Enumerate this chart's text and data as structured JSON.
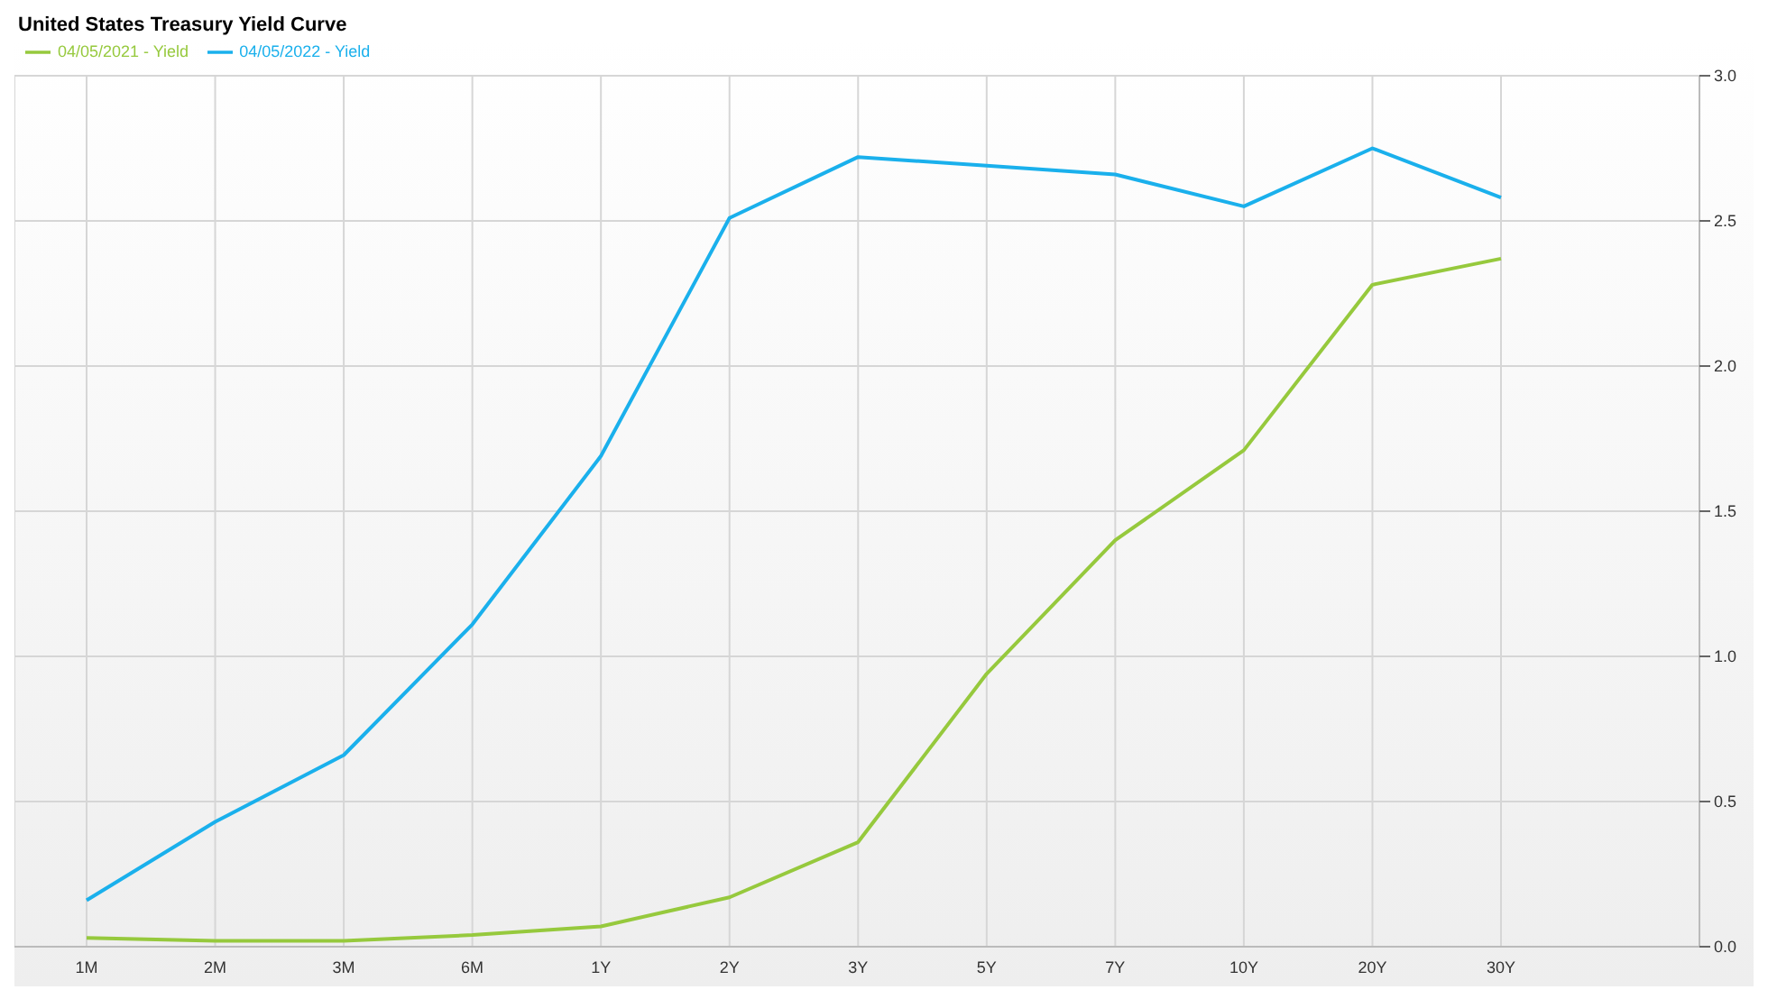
{
  "chart_data": {
    "type": "line",
    "title": "United States Treasury Yield Curve",
    "categories": [
      "1M",
      "2M",
      "3M",
      "6M",
      "1Y",
      "2Y",
      "3Y",
      "5Y",
      "7Y",
      "10Y",
      "20Y",
      "30Y"
    ],
    "series": [
      {
        "name": "04/05/2022 - Yield",
        "color": "#1ab0ec",
        "values": [
          0.16,
          0.43,
          0.66,
          1.11,
          1.69,
          2.51,
          2.72,
          2.69,
          2.66,
          2.55,
          2.75,
          2.58
        ]
      },
      {
        "name": "04/05/2021 - Yield",
        "color": "#96c93d",
        "values": [
          0.03,
          0.02,
          0.02,
          0.04,
          0.07,
          0.17,
          0.36,
          0.94,
          1.4,
          1.71,
          2.28,
          2.37
        ]
      }
    ],
    "ylim": [
      0,
      3
    ],
    "yticks": [
      {
        "value": 0,
        "label": "0.0"
      },
      {
        "value": 0.5,
        "label": "0.5"
      },
      {
        "value": 1,
        "label": "1.0"
      },
      {
        "value": 1.5,
        "label": "1.5"
      },
      {
        "value": 2,
        "label": "2.0"
      },
      {
        "value": 2.5,
        "label": "2.5"
      },
      {
        "value": 3,
        "label": "3.0"
      }
    ],
    "grid": true,
    "legend": "top left",
    "marker": "none",
    "line_style": "solid"
  }
}
